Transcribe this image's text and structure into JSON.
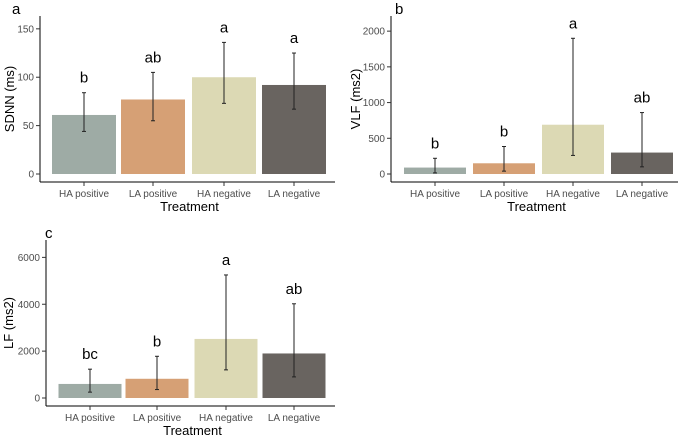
{
  "chart_data": [
    {
      "panel": "a",
      "type": "bar",
      "categories": [
        "HA positive",
        "LA positive",
        "HA negative",
        "LA negative"
      ],
      "values": [
        61,
        77,
        100,
        92
      ],
      "error_low": [
        44,
        55,
        73,
        67
      ],
      "error_high": [
        84,
        105,
        136,
        125
      ],
      "letters": [
        "b",
        "ab",
        "a",
        "a"
      ],
      "colors": [
        "#9eaba5",
        "#d6a075",
        "#dcd9b4",
        "#696460"
      ],
      "xlabel": "Treatment",
      "ylabel": "SDNN (ms)",
      "ylim": [
        0,
        155
      ],
      "yticks": [
        0,
        50,
        100,
        150
      ],
      "grid": false
    },
    {
      "panel": "b",
      "type": "bar",
      "categories": [
        "HA positive",
        "LA positive",
        "HA negative",
        "LA negative"
      ],
      "values": [
        90,
        150,
        690,
        300
      ],
      "error_low": [
        15,
        40,
        260,
        100
      ],
      "error_high": [
        220,
        385,
        1900,
        860
      ],
      "letters": [
        "b",
        "b",
        "a",
        "ab"
      ],
      "colors": [
        "#9eaba5",
        "#d6a075",
        "#dcd9b4",
        "#696460"
      ],
      "xlabel": "Treatment",
      "ylabel": "VLF (ms2)",
      "ylim": [
        0,
        2100
      ],
      "yticks": [
        0,
        500,
        1000,
        1500,
        2000
      ],
      "grid": false
    },
    {
      "panel": "c",
      "type": "bar",
      "categories": [
        "HA positive",
        "LA positive",
        "HA negative",
        "LA negative"
      ],
      "values": [
        600,
        820,
        2520,
        1900
      ],
      "error_low": [
        250,
        360,
        1200,
        900
      ],
      "error_high": [
        1230,
        1780,
        5250,
        4020
      ],
      "letters": [
        "bc",
        "b",
        "a",
        "ab"
      ],
      "colors": [
        "#9eaba5",
        "#d6a075",
        "#dcd9b4",
        "#696460"
      ],
      "xlabel": "Treatment",
      "ylabel": "LF (ms2)",
      "ylim": [
        0,
        6400
      ],
      "yticks": [
        0,
        2000,
        4000,
        6000
      ],
      "grid": false
    }
  ]
}
